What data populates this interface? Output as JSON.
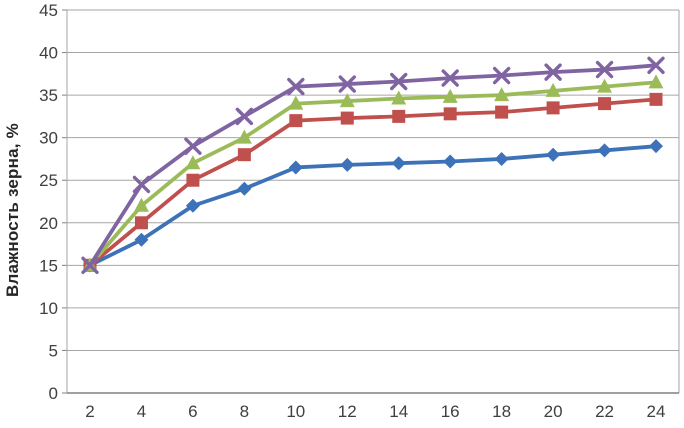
{
  "chart_data": {
    "type": "line",
    "title": "",
    "xlabel": "",
    "ylabel": "Влажность зерна, %",
    "x": [
      2,
      4,
      6,
      8,
      10,
      12,
      14,
      16,
      18,
      20,
      22,
      24
    ],
    "series": [
      {
        "name": "blue-diamond-series",
        "marker": "diamond",
        "color": "#3D72B8",
        "values": [
          15,
          18,
          22,
          24,
          26.5,
          26.8,
          27,
          27.2,
          27.5,
          28,
          28.5,
          29
        ]
      },
      {
        "name": "red-square-series",
        "marker": "square",
        "color": "#C0504D",
        "values": [
          15,
          20,
          25,
          28,
          32,
          32.3,
          32.5,
          32.8,
          33,
          33.5,
          34,
          34.5
        ]
      },
      {
        "name": "green-triangle-series",
        "marker": "triangle",
        "color": "#9BBB59",
        "values": [
          15,
          22,
          27,
          30,
          34,
          34.3,
          34.6,
          34.8,
          35,
          35.5,
          36,
          36.5
        ]
      },
      {
        "name": "purple-x-series",
        "marker": "x",
        "color": "#8064A2",
        "values": [
          15,
          24.5,
          29,
          32.5,
          36,
          36.3,
          36.6,
          37,
          37.3,
          37.7,
          38,
          38.5
        ]
      }
    ],
    "ylim": [
      0,
      45
    ],
    "ytick_step": 5,
    "yticks": [
      0,
      5,
      10,
      15,
      20,
      25,
      30,
      35,
      40,
      45
    ],
    "grid": "horizontal",
    "legend": "none",
    "colors": {
      "gridline": "#A6A6A6",
      "axis": "#808080",
      "tick_label": "#404040"
    }
  }
}
